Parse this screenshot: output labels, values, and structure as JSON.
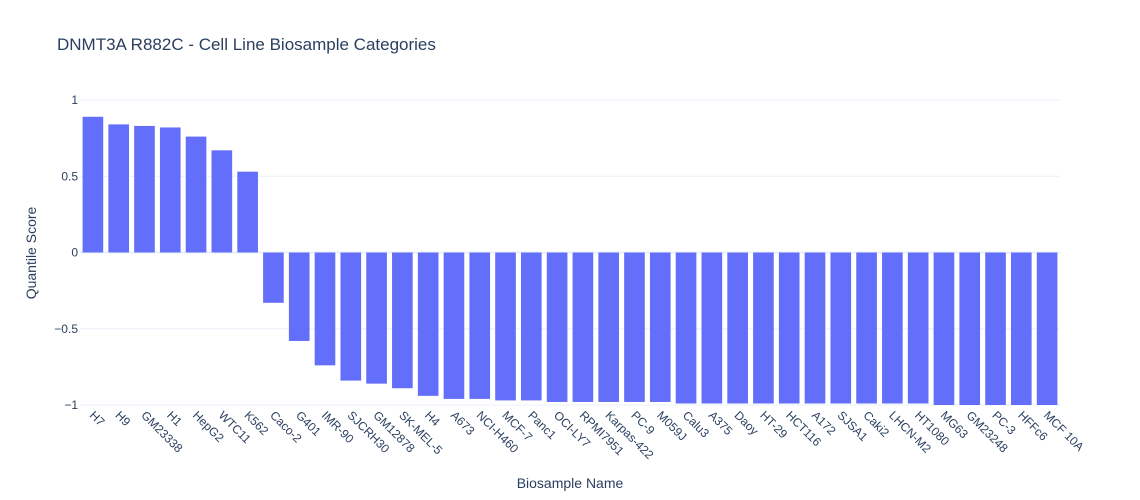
{
  "chart_data": {
    "type": "bar",
    "title": "DNMT3A R882C - Cell Line Biosample Categories",
    "xlabel": "Biosample Name",
    "ylabel": "Quantile Score",
    "ylim": [
      -1,
      1
    ],
    "yticks": [
      1,
      0.5,
      0,
      -0.5,
      -1
    ],
    "ytick_labels": [
      "1",
      "0.5",
      "0",
      "−0.5",
      "−1"
    ],
    "grid": true,
    "bar_color": "#636efa",
    "categories": [
      "H7",
      "H9",
      "GM23338",
      "H1",
      "HepG2",
      "WTC11",
      "K562",
      "Caco-2",
      "G401",
      "IMR-90",
      "SJCRH30",
      "GM12878",
      "SK-MEL-5",
      "H4",
      "A673",
      "NCI-H460",
      "MCF-7",
      "Panc1",
      "OCI-LY7",
      "RPMI7951",
      "Karpas-422",
      "PC-9",
      "M059J",
      "Calu3",
      "A375",
      "Daoy",
      "HT-29",
      "HCT116",
      "A172",
      "SJSA1",
      "Caki2",
      "LHCN-M2",
      "HT1080",
      "MG63",
      "GM23248",
      "PC-3",
      "HFFc6",
      "MCF 10A"
    ],
    "values": [
      0.89,
      0.84,
      0.83,
      0.82,
      0.76,
      0.67,
      0.53,
      -0.33,
      -0.58,
      -0.74,
      -0.84,
      -0.86,
      -0.89,
      -0.94,
      -0.96,
      -0.96,
      -0.97,
      -0.97,
      -0.98,
      -0.98,
      -0.98,
      -0.98,
      -0.98,
      -0.99,
      -0.99,
      -0.99,
      -0.99,
      -0.99,
      -0.99,
      -0.99,
      -0.99,
      -0.99,
      -0.99,
      -1.0,
      -1.0,
      -1.0,
      -1.0,
      -1.0
    ]
  }
}
